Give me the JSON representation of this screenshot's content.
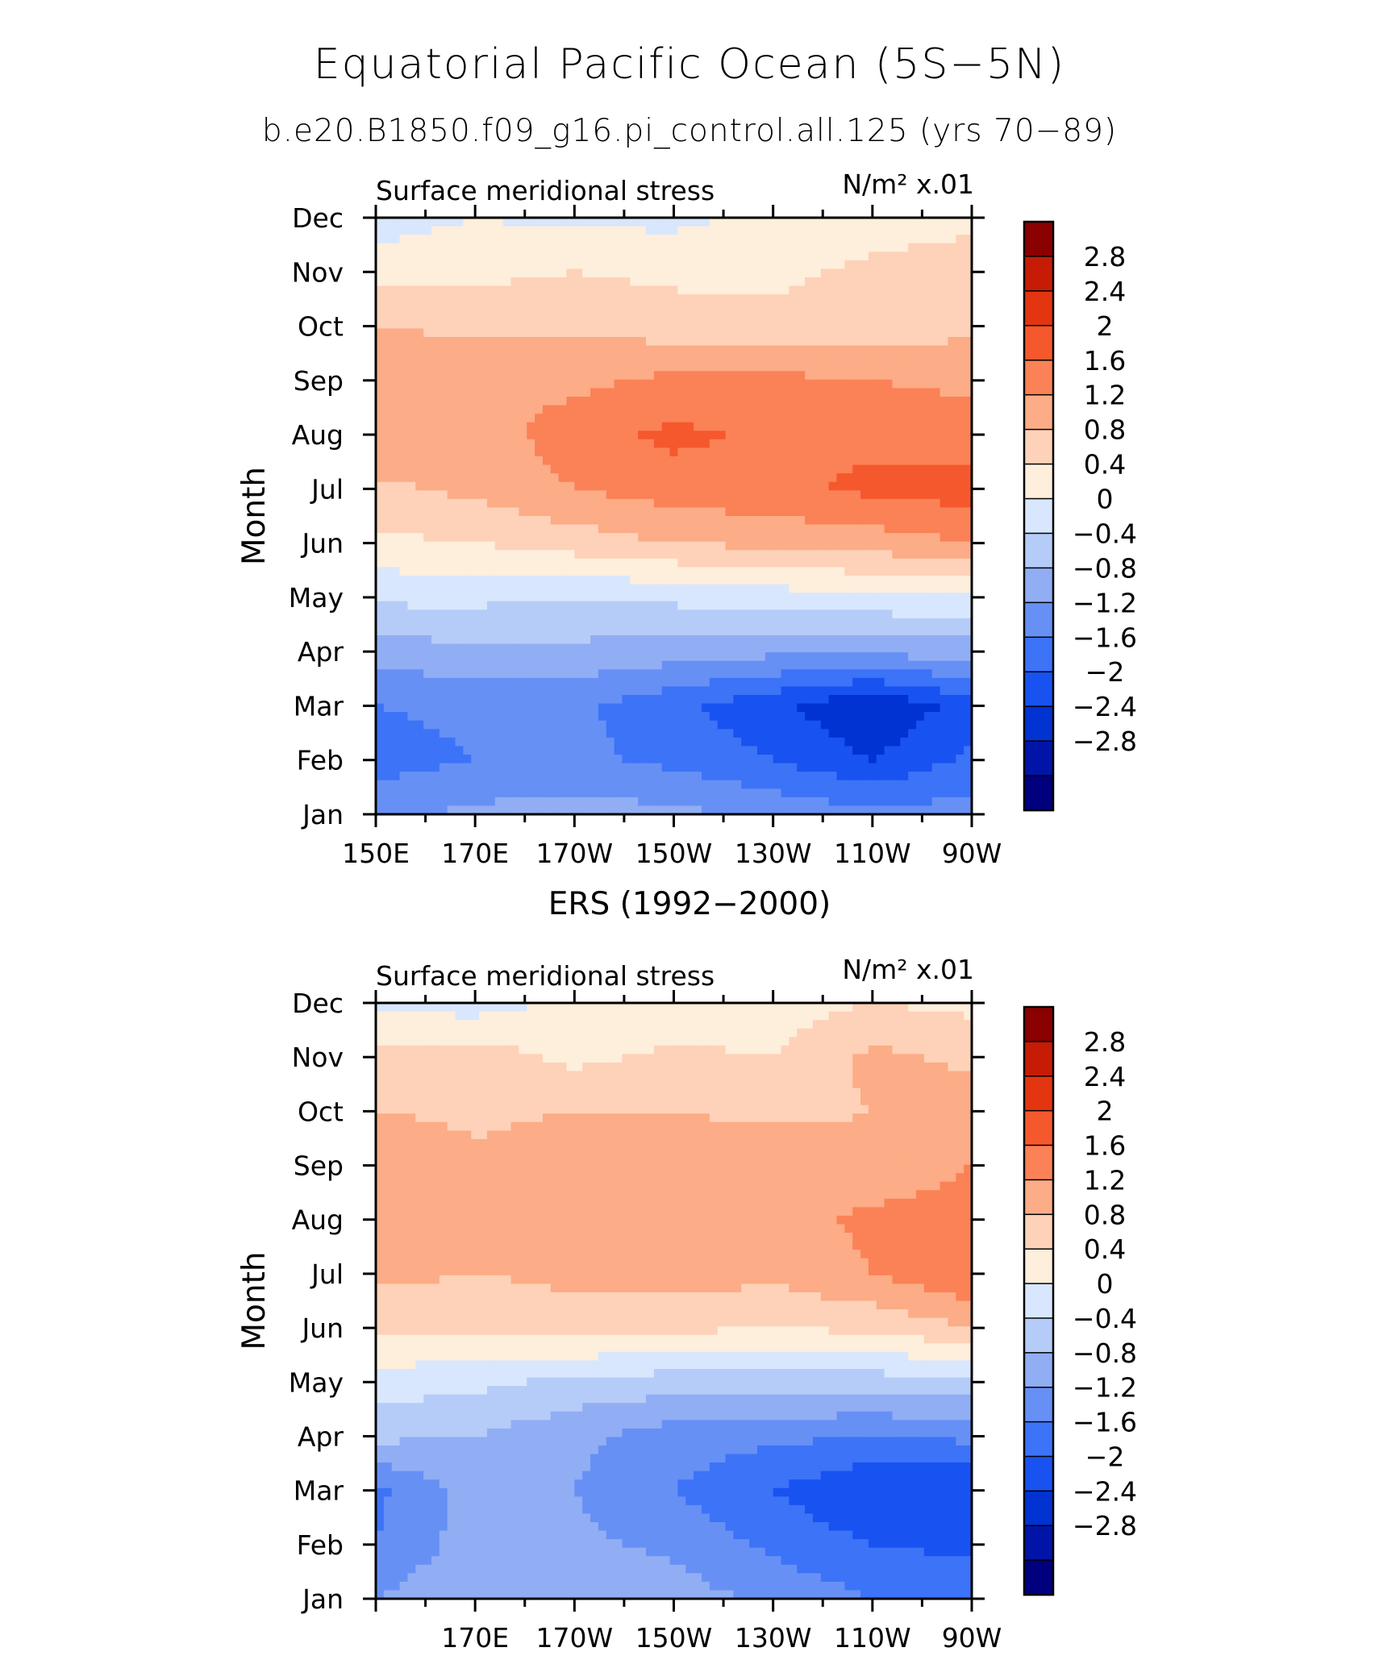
{
  "title": "Equatorial Pacific Ocean (5S−5N)",
  "subtitle": "b.e20.B1850.f09_g16.pi_control.all.125 (yrs 70−89)",
  "colors": [
    "#00007f",
    "#0014a8",
    "#0033d1",
    "#1852f0",
    "#3c73f7",
    "#6790f5",
    "#91aef4",
    "#b6ccf8",
    "#d8e7fd",
    "#feeedc",
    "#fdd2b8",
    "#fcac86",
    "#fa8256",
    "#f5582c",
    "#e33510",
    "#c61c06",
    "#8b0000"
  ],
  "colorbar_labels": [
    "2.8",
    "2.4",
    "2",
    "1.6",
    "1.2",
    "0.8",
    "0.4",
    "0",
    "−0.4",
    "−0.8",
    "−1.2",
    "−1.6",
    "−2",
    "−2.4",
    "−2.8"
  ],
  "chart_data": [
    {
      "type": "heatmap",
      "panel_title": "",
      "left_string": "Surface meridional stress",
      "right_string": "N/m² x.01",
      "ylabel": "Month",
      "x_tick_labels": [
        "150E",
        "170E",
        "170W",
        "150W",
        "130W",
        "110W",
        "90W"
      ],
      "y_tick_labels": [
        "Jan",
        "Feb",
        "Mar",
        "Apr",
        "May",
        "Jun",
        "Jul",
        "Aug",
        "Sep",
        "Oct",
        "Nov",
        "Dec"
      ],
      "x": [
        150,
        170,
        190,
        210,
        230,
        250,
        270
      ],
      "y": [
        1,
        2,
        3,
        4,
        5,
        6,
        7,
        8,
        9,
        10,
        11,
        12
      ],
      "zlim": [
        -3.2,
        3.2
      ],
      "levels": [
        -2.8,
        -2.4,
        -2,
        -1.6,
        -1.2,
        -0.8,
        -0.4,
        0,
        0.4,
        0.8,
        1.2,
        1.6,
        2,
        2.4,
        2.8
      ],
      "z": [
        [
          -1.3,
          -1.1,
          -1.0,
          -1.1,
          -1.3,
          -1.5,
          -1.4
        ],
        [
          -1.8,
          -1.6,
          -1.5,
          -1.7,
          -2.0,
          -2.4,
          -1.9
        ],
        [
          -1.6,
          -1.5,
          -1.5,
          -1.9,
          -2.3,
          -2.8,
          -2.2
        ],
        [
          -1.0,
          -0.9,
          -0.9,
          -1.0,
          -1.1,
          -1.1,
          -1.0
        ],
        [
          -0.3,
          -0.3,
          -0.4,
          -0.3,
          -0.2,
          -0.1,
          -0.1
        ],
        [
          0.3,
          0.4,
          0.6,
          0.8,
          0.9,
          1.0,
          1.2
        ],
        [
          0.7,
          0.9,
          1.2,
          1.4,
          1.5,
          1.7,
          1.8
        ],
        [
          1.2,
          1.0,
          1.4,
          1.7,
          1.5,
          1.5,
          1.4
        ],
        [
          1.2,
          1.1,
          1.1,
          1.3,
          1.3,
          1.2,
          1.1
        ],
        [
          0.8,
          0.7,
          0.7,
          0.6,
          0.5,
          0.6,
          0.7
        ],
        [
          0.2,
          0.3,
          0.4,
          0.3,
          0.3,
          0.5,
          0.6
        ],
        [
          -0.2,
          0.0,
          -0.1,
          -0.1,
          0.1,
          0.2,
          0.3
        ]
      ]
    },
    {
      "type": "heatmap",
      "panel_title": "ERS (1992−2000)",
      "left_string": "Surface meridional stress",
      "right_string": "N/m² x.01",
      "ylabel": "Month",
      "x_tick_labels": [
        "170E",
        "170W",
        "150W",
        "130W",
        "110W",
        "90W"
      ],
      "y_tick_labels": [
        "Jan",
        "Feb",
        "Mar",
        "Apr",
        "May",
        "Jun",
        "Jul",
        "Aug",
        "Sep",
        "Oct",
        "Nov",
        "Dec"
      ],
      "x": [
        150,
        170,
        190,
        210,
        230,
        250,
        270
      ],
      "y": [
        1,
        2,
        3,
        4,
        5,
        6,
        7,
        8,
        9,
        10,
        11,
        12
      ],
      "zlim": [
        -3.2,
        3.2
      ],
      "levels": [
        -2.8,
        -2.4,
        -2,
        -1.6,
        -1.2,
        -0.8,
        -0.4,
        0,
        0.4,
        0.8,
        1.2,
        1.6,
        2,
        2.4,
        2.8
      ],
      "z": [
        [
          -1.2,
          -0.8,
          -0.9,
          -1.0,
          -1.3,
          -1.6,
          -1.7
        ],
        [
          -1.6,
          -1.0,
          -1.1,
          -1.3,
          -1.7,
          -2.0,
          -2.1
        ],
        [
          -1.7,
          -1.0,
          -1.2,
          -1.6,
          -2.0,
          -2.4,
          -2.4
        ],
        [
          -0.7,
          -0.8,
          -1.1,
          -1.4,
          -1.5,
          -1.6,
          -1.5
        ],
        [
          -0.2,
          -0.3,
          -0.5,
          -0.6,
          -0.6,
          -0.6,
          -0.5
        ],
        [
          0.5,
          0.5,
          0.6,
          0.5,
          0.4,
          0.5,
          0.8
        ],
        [
          0.9,
          0.8,
          0.9,
          1.0,
          0.9,
          1.2,
          1.6
        ],
        [
          0.9,
          0.8,
          1.0,
          1.1,
          1.0,
          1.3,
          1.4
        ],
        [
          1.2,
          0.9,
          1.1,
          1.0,
          1.1,
          0.9,
          1.2
        ],
        [
          0.8,
          0.7,
          0.8,
          0.8,
          0.7,
          0.8,
          1.1
        ],
        [
          0.5,
          0.6,
          0.3,
          0.5,
          0.4,
          0.9,
          0.7
        ],
        [
          -0.1,
          -0.2,
          0.1,
          0.0,
          0.2,
          0.4,
          0.3
        ]
      ]
    }
  ]
}
